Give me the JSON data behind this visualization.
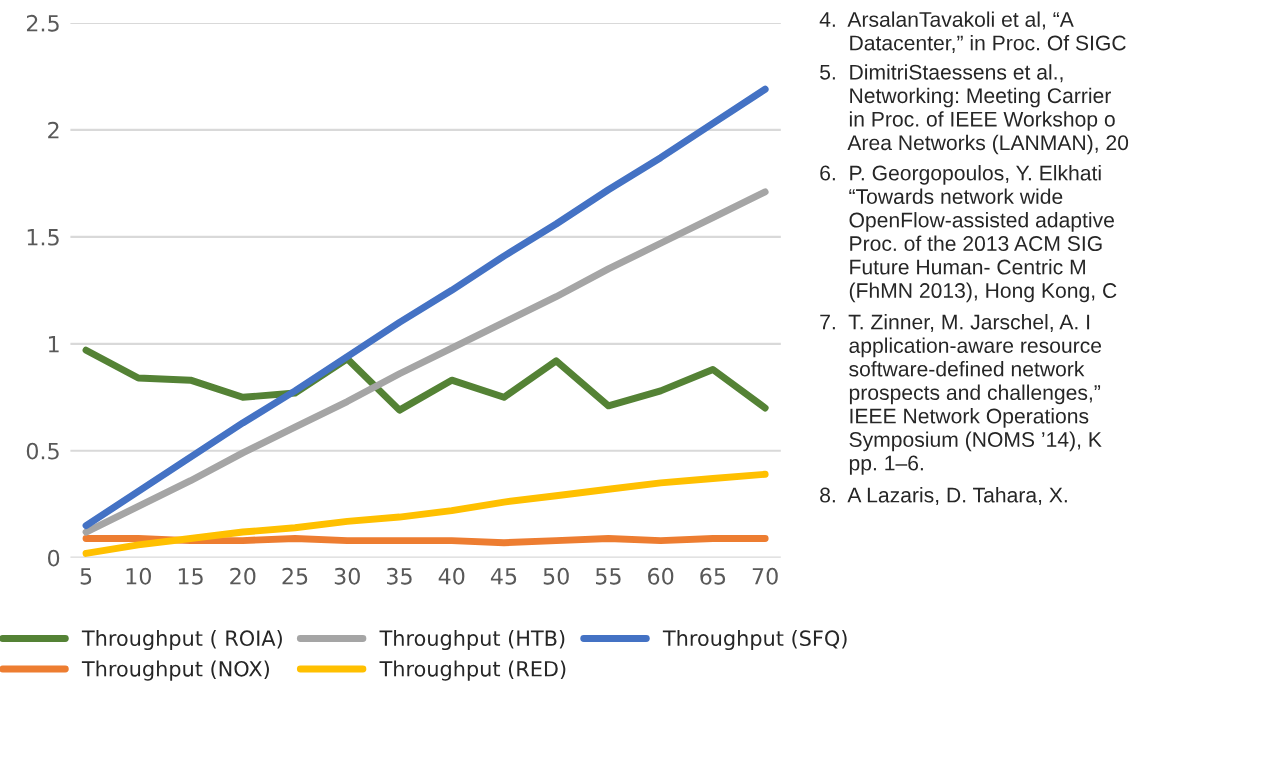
{
  "chart_data": {
    "type": "line",
    "categories": [
      "5",
      "10",
      "15",
      "20",
      "25",
      "30",
      "35",
      "40",
      "45",
      "50",
      "55",
      "60",
      "65",
      "70"
    ],
    "series": [
      {
        "name": "Throughput ( ROIA)",
        "color": "#548235",
        "values": [
          0.97,
          0.84,
          0.83,
          0.75,
          0.77,
          0.93,
          0.69,
          0.83,
          0.75,
          0.92,
          0.71,
          0.78,
          0.88,
          0.7
        ]
      },
      {
        "name": "Throughput (NOX)",
        "color": "#ed7d31",
        "values": [
          0.09,
          0.09,
          0.08,
          0.08,
          0.09,
          0.08,
          0.08,
          0.08,
          0.07,
          0.08,
          0.09,
          0.08,
          0.09,
          0.09
        ]
      },
      {
        "name": "Throughput (HTB)",
        "color": "#a5a5a5",
        "values": [
          0.12,
          0.24,
          0.36,
          0.49,
          0.61,
          0.73,
          0.86,
          0.98,
          1.1,
          1.22,
          1.35,
          1.47,
          1.59,
          1.71
        ]
      },
      {
        "name": "Throughput (RED)",
        "color": "#ffc000",
        "values": [
          0.02,
          0.06,
          0.09,
          0.12,
          0.14,
          0.17,
          0.19,
          0.22,
          0.26,
          0.29,
          0.32,
          0.35,
          0.37,
          0.39
        ]
      },
      {
        "name": "Throughput (SFQ)",
        "color": "#4472c4",
        "values": [
          0.15,
          0.31,
          0.47,
          0.63,
          0.78,
          0.94,
          1.1,
          1.25,
          1.41,
          1.56,
          1.72,
          1.87,
          2.03,
          2.19
        ]
      }
    ],
    "ylim": [
      0,
      2.5
    ],
    "yticks": [
      0,
      0.5,
      1,
      1.5,
      2,
      2.5
    ],
    "grid": "y",
    "legend": "bottom",
    "marker": "none",
    "line_style": "solid",
    "annotations": [
      "4.  ArsalanTavakoli et al, “A\n     Datacenter,” in Proc. Of SIGC",
      "5.  DimitriStaessens et al.,\n     Networking: Meeting Carrier\n     in Proc. of IEEE Workshop o\n     Area Networks (LANMAN), 20",
      "6.  P. Georgopoulos, Y. Elkhati\n     “Towards network wide\n     OpenFlow-assisted adaptive\n     Proc. of the 2013 ACM SIG\n     Future Human- Centric M\n     (FhMN 2013), Hong Kong, C",
      "7.  T. Zinner, M. Jarschel, A. I\n     application-aware resource\n     software-defined network\n     prospects and challenges,”\n     IEEE Network Operations\n     Symposium (NOMS ’14), K\n     pp. 1–6.",
      "8.  A Lazaris, D. Tahara, X."
    ]
  }
}
